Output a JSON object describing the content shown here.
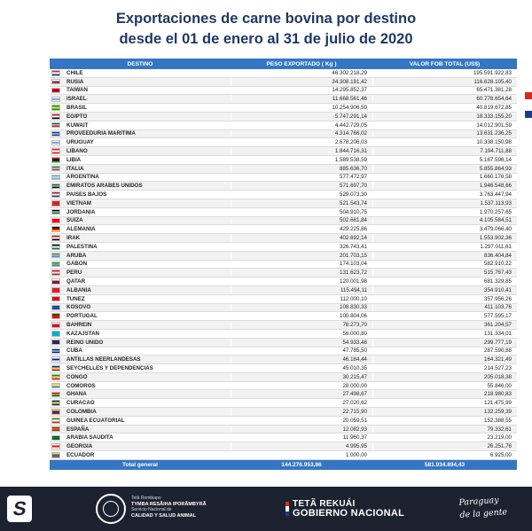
{
  "title": {
    "line1": "Exportaciones de carne bovina por destino",
    "line2": "desde el 01 de enero al 31 de julio de 2020"
  },
  "table": {
    "headers": [
      "DESTINO",
      "PESO EXPORTADO ( Kg )",
      "VALOR FOB TOTAL (US$)"
    ],
    "rows": [
      {
        "destino": "CHILE",
        "peso": "46.302.218,29",
        "fob": "195.591.922,83",
        "flag": [
          "#d52b1e",
          "#ffffff",
          "#0039a6"
        ]
      },
      {
        "destino": "RUSIA",
        "peso": "34.308.191,42",
        "fob": "116.628.105,40",
        "flag": [
          "#ffffff",
          "#0039a6",
          "#d52b1e"
        ]
      },
      {
        "destino": "TAIWAN",
        "peso": "14.295.852,37",
        "fob": "65.471.381,28",
        "flag": [
          "#fe0000",
          "#000095",
          "#fe0000"
        ]
      },
      {
        "destino": "ISRAEL",
        "peso": "11.668.561,46",
        "fob": "60.778.654,64",
        "flag": [
          "#ffffff",
          "#0038b8",
          "#ffffff"
        ]
      },
      {
        "destino": "BRASIL",
        "peso": "10.254.906,59",
        "fob": "40.819.672,85",
        "flag": [
          "#009c3b",
          "#ffdf00",
          "#009c3b"
        ]
      },
      {
        "destino": "EGIPTO",
        "peso": "5.747.291,14",
        "fob": "18.333.155,20",
        "flag": [
          "#ce1126",
          "#ffffff",
          "#000000"
        ]
      },
      {
        "destino": "KUWAIT",
        "peso": "4.442.729,05",
        "fob": "14.012.901,59",
        "flag": [
          "#007a3d",
          "#ffffff",
          "#ce1126"
        ]
      },
      {
        "destino": "PROVEEDURIA MARITIMA",
        "peso": "4.314.766,02",
        "fob": "13.631.236,25",
        "flag": [
          "#1f3b8c",
          "#ffffff",
          "#1f3b8c"
        ]
      },
      {
        "destino": "URUGUAY",
        "peso": "2.678.206,03",
        "fob": "10.338.150,98",
        "flag": [
          "#ffffff",
          "#0038a8",
          "#ffffff"
        ]
      },
      {
        "destino": "LIBANO",
        "peso": "1.844.716,31",
        "fob": "7.194.711,88",
        "flag": [
          "#ed1c24",
          "#ffffff",
          "#ed1c24"
        ]
      },
      {
        "destino": "LIBIA",
        "peso": "1.589.538,59",
        "fob": "5.167.596,14",
        "flag": [
          "#e70013",
          "#000000",
          "#239e46"
        ]
      },
      {
        "destino": "ITALIA",
        "peso": "885.636,70",
        "fob": "5.855.864,93",
        "flag": [
          "#009246",
          "#ffffff",
          "#ce2b37"
        ]
      },
      {
        "destino": "ARGENTINA",
        "peso": "577.472,97",
        "fob": "1.660.176,58",
        "flag": [
          "#74acdf",
          "#ffffff",
          "#74acdf"
        ]
      },
      {
        "destino": "EMIRATOS ARABES UNIDOS",
        "peso": "571.697,70",
        "fob": "1.946.548,66",
        "flag": [
          "#00732f",
          "#ffffff",
          "#000000"
        ]
      },
      {
        "destino": "PAISES BAJOS",
        "peso": "529.073,30",
        "fob": "3.763.447,94",
        "flag": [
          "#ae1c28",
          "#ffffff",
          "#21468b"
        ]
      },
      {
        "destino": "VIETNAM",
        "peso": "521.543,74",
        "fob": "1.537.113,93",
        "flag": [
          "#da251d",
          "#da251d",
          "#da251d"
        ]
      },
      {
        "destino": "JORDANIA",
        "peso": "504.910,75",
        "fob": "1.970.257,65",
        "flag": [
          "#000000",
          "#ffffff",
          "#007a3d"
        ]
      },
      {
        "destino": "SUIZA",
        "peso": "502.681,84",
        "fob": "4.105.584,51",
        "flag": [
          "#ff0000",
          "#ff0000",
          "#ff0000"
        ]
      },
      {
        "destino": "ALEMANIA",
        "peso": "429.225,86",
        "fob": "3.479.066,40",
        "flag": [
          "#000000",
          "#dd0000",
          "#ffce00"
        ]
      },
      {
        "destino": "IRAK",
        "peso": "402.692,14",
        "fob": "1.553.902,36",
        "flag": [
          "#ce1126",
          "#ffffff",
          "#000000"
        ]
      },
      {
        "destino": "PALESTINA",
        "peso": "326.743,41",
        "fob": "1.297.011,61",
        "flag": [
          "#000000",
          "#ffffff",
          "#007a3d"
        ]
      },
      {
        "destino": "ARUBA",
        "peso": "201.703,15",
        "fob": "836.404,84",
        "flag": [
          "#418fde",
          "#ffd100",
          "#418fde"
        ]
      },
      {
        "destino": "GABON",
        "peso": "174.103,04",
        "fob": "582.910,22",
        "flag": [
          "#009e60",
          "#fcd116",
          "#3a75c4"
        ]
      },
      {
        "destino": "PERU",
        "peso": "131.623,72",
        "fob": "515.767,43",
        "flag": [
          "#d91023",
          "#ffffff",
          "#d91023"
        ]
      },
      {
        "destino": "QATAR",
        "peso": "120.001,98",
        "fob": "681.329,85",
        "flag": [
          "#ffffff",
          "#8a1538",
          "#8a1538"
        ]
      },
      {
        "destino": "ALBANIA",
        "peso": "115.494,11",
        "fob": "354.910,41",
        "flag": [
          "#e41e20",
          "#e41e20",
          "#e41e20"
        ]
      },
      {
        "destino": "TUNEZ",
        "peso": "112.000,10",
        "fob": "357.956,26",
        "flag": [
          "#e70013",
          "#e70013",
          "#e70013"
        ]
      },
      {
        "destino": "KOSOVO",
        "peso": "108.830,33",
        "fob": "411.103,76",
        "flag": [
          "#244aa5",
          "#244aa5",
          "#244aa5"
        ]
      },
      {
        "destino": "PORTUGAL",
        "peso": "100.804,06",
        "fob": "577.595,17",
        "flag": [
          "#006600",
          "#ff0000",
          "#ff0000"
        ]
      },
      {
        "destino": "BAHREIN",
        "peso": "78.273,70",
        "fob": "361.204,57",
        "flag": [
          "#ffffff",
          "#ce1126",
          "#ce1126"
        ]
      },
      {
        "destino": "KAZAJSTAN",
        "peso": "56.000,80",
        "fob": "131.334,01",
        "flag": [
          "#00afca",
          "#00afca",
          "#00afca"
        ]
      },
      {
        "destino": "REINO UNIDO",
        "peso": "54.933,48",
        "fob": "299.777,19",
        "flag": [
          "#012169",
          "#c8102e",
          "#012169"
        ]
      },
      {
        "destino": "CUBA",
        "peso": "47.785,50",
        "fob": "287.590,88",
        "flag": [
          "#002a8f",
          "#ffffff",
          "#002a8f"
        ]
      },
      {
        "destino": "ANTILLAS NEERLANDESAS",
        "peso": "46.184,44",
        "fob": "164.321,49",
        "flag": [
          "#ffffff",
          "#012a87",
          "#ffffff"
        ]
      },
      {
        "destino": "SEYCHELLES Y DEPENDENCIAS",
        "peso": "45.010,35",
        "fob": "214.527,23",
        "flag": [
          "#003f87",
          "#fcd856",
          "#d62828"
        ]
      },
      {
        "destino": "CONGO",
        "peso": "30.215,47",
        "fob": "205.018,38",
        "flag": [
          "#009543",
          "#fbde4a",
          "#dc241f"
        ]
      },
      {
        "destino": "COMOROS",
        "peso": "28.000,00",
        "fob": "55.846,00",
        "flag": [
          "#ffc61e",
          "#ffffff",
          "#3a75c4"
        ]
      },
      {
        "destino": "GHANA",
        "peso": "27.498,67",
        "fob": "218.980,83",
        "flag": [
          "#ce1126",
          "#fcd116",
          "#006b3f"
        ]
      },
      {
        "destino": "CURACAO",
        "peso": "27.020,62",
        "fob": "121.475,99",
        "flag": [
          "#002b7f",
          "#f9e814",
          "#002b7f"
        ]
      },
      {
        "destino": "COLOMBIA",
        "peso": "22.715,90",
        "fob": "132.259,39",
        "flag": [
          "#fcd116",
          "#003893",
          "#ce1126"
        ]
      },
      {
        "destino": "GUINEA ECUATORIAL",
        "peso": "20.059,51",
        "fob": "152.388,55",
        "flag": [
          "#3e9a00",
          "#ffffff",
          "#e32118"
        ]
      },
      {
        "destino": "ESPAÑA",
        "peso": "12.082,93",
        "fob": "79.332,61",
        "flag": [
          "#aa151b",
          "#f1bf00",
          "#aa151b"
        ]
      },
      {
        "destino": "ARABIA SAUDITA",
        "peso": "11.960,37",
        "fob": "23.219,00",
        "flag": [
          "#006c35",
          "#006c35",
          "#006c35"
        ]
      },
      {
        "destino": "GEORGIA",
        "peso": "4.995,95",
        "fob": "26.251,76",
        "flag": [
          "#ffffff",
          "#ff0000",
          "#ffffff"
        ]
      },
      {
        "destino": "ECUADOR",
        "peso": "1.000,00",
        "fob": "6.925,00",
        "flag": [
          "#ffd100",
          "#0072ce",
          "#ef3340"
        ]
      }
    ],
    "total": {
      "label": "Total general",
      "peso": "144.276.953,86",
      "fob": "581.934.894,43"
    }
  },
  "footer": {
    "senacsa_line1": "Tetã Rembiapo",
    "senacsa_line2": "TYMBA RESÃIHA IPORÃMBYRÃ",
    "senacsa_line3": "Servicio Nacional de",
    "senacsa_line4": "CALIDAD Y SALUD ANIMAL",
    "gov_line1": "TETÃ REKUÁI",
    "gov_line2": "GOBIERNO NACIONAL",
    "slogan_line1": "Paraguay",
    "slogan_line2": "de la gente"
  },
  "colors": {
    "title": "#1f3864",
    "header_bg": "#3576c4",
    "footer_bg": "#1c2230",
    "accent_red": "#d52b1e",
    "accent_blue": "#1f3b8c"
  }
}
